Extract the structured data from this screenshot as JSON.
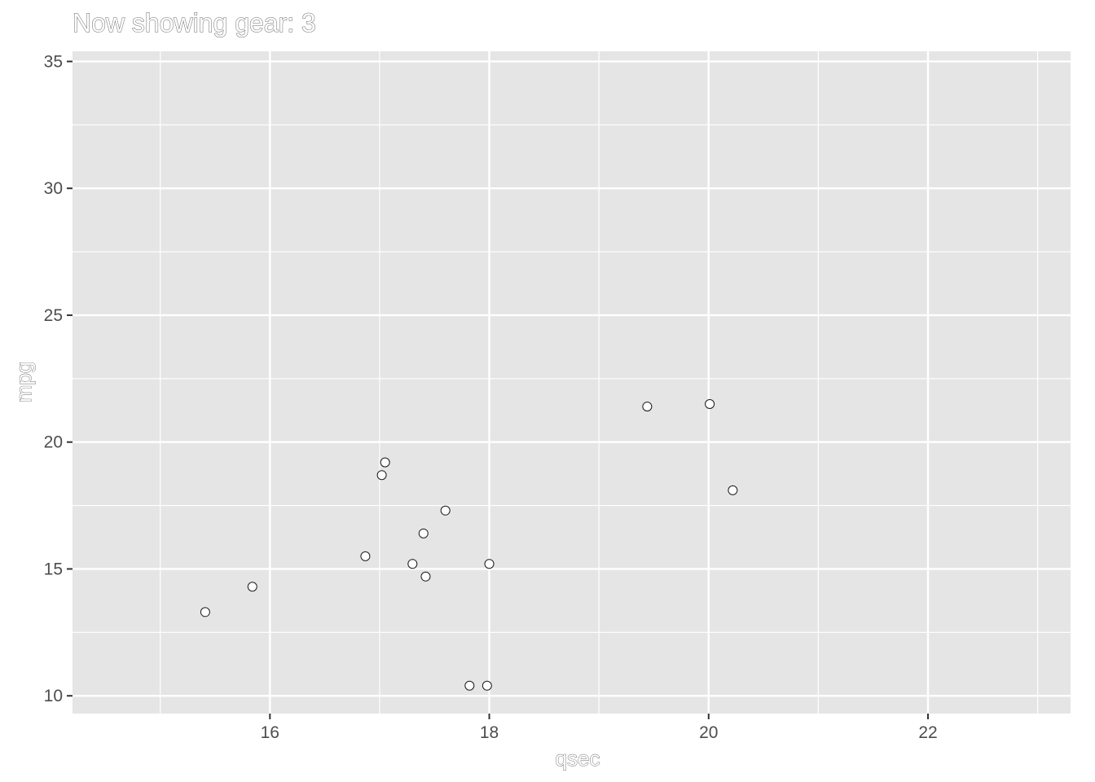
{
  "chart_data": {
    "type": "scatter",
    "title": "Now showing gear: 3",
    "xlabel": "qsec",
    "ylabel": "mpg",
    "xlim": [
      14.2,
      23.3
    ],
    "ylim": [
      9.3,
      35.4
    ],
    "x_ticks": [
      16,
      18,
      20,
      22
    ],
    "x_minor": [
      15,
      17,
      19,
      21,
      23
    ],
    "y_ticks": [
      10,
      15,
      20,
      25,
      30,
      35
    ],
    "y_minor": [
      12.5,
      17.5,
      22.5,
      27.5,
      32.5
    ],
    "grid": true,
    "points": [
      {
        "x": 15.41,
        "y": 13.3
      },
      {
        "x": 15.84,
        "y": 14.3
      },
      {
        "x": 16.87,
        "y": 15.5
      },
      {
        "x": 17.02,
        "y": 18.7
      },
      {
        "x": 17.05,
        "y": 19.2
      },
      {
        "x": 17.3,
        "y": 15.2
      },
      {
        "x": 17.4,
        "y": 16.4
      },
      {
        "x": 17.42,
        "y": 14.7
      },
      {
        "x": 17.6,
        "y": 17.3
      },
      {
        "x": 17.82,
        "y": 10.4
      },
      {
        "x": 17.98,
        "y": 10.4
      },
      {
        "x": 18.0,
        "y": 15.2
      },
      {
        "x": 19.44,
        "y": 21.4
      },
      {
        "x": 20.01,
        "y": 21.5
      },
      {
        "x": 20.22,
        "y": 18.1
      }
    ],
    "colors": {
      "panel": "#e5e5e5",
      "grid": "#ffffff",
      "point_fill": "#ffffff",
      "point_stroke": "#1a1a1a",
      "tick_text": "#4d4d4d",
      "axis_title_outline": "#666666"
    }
  }
}
